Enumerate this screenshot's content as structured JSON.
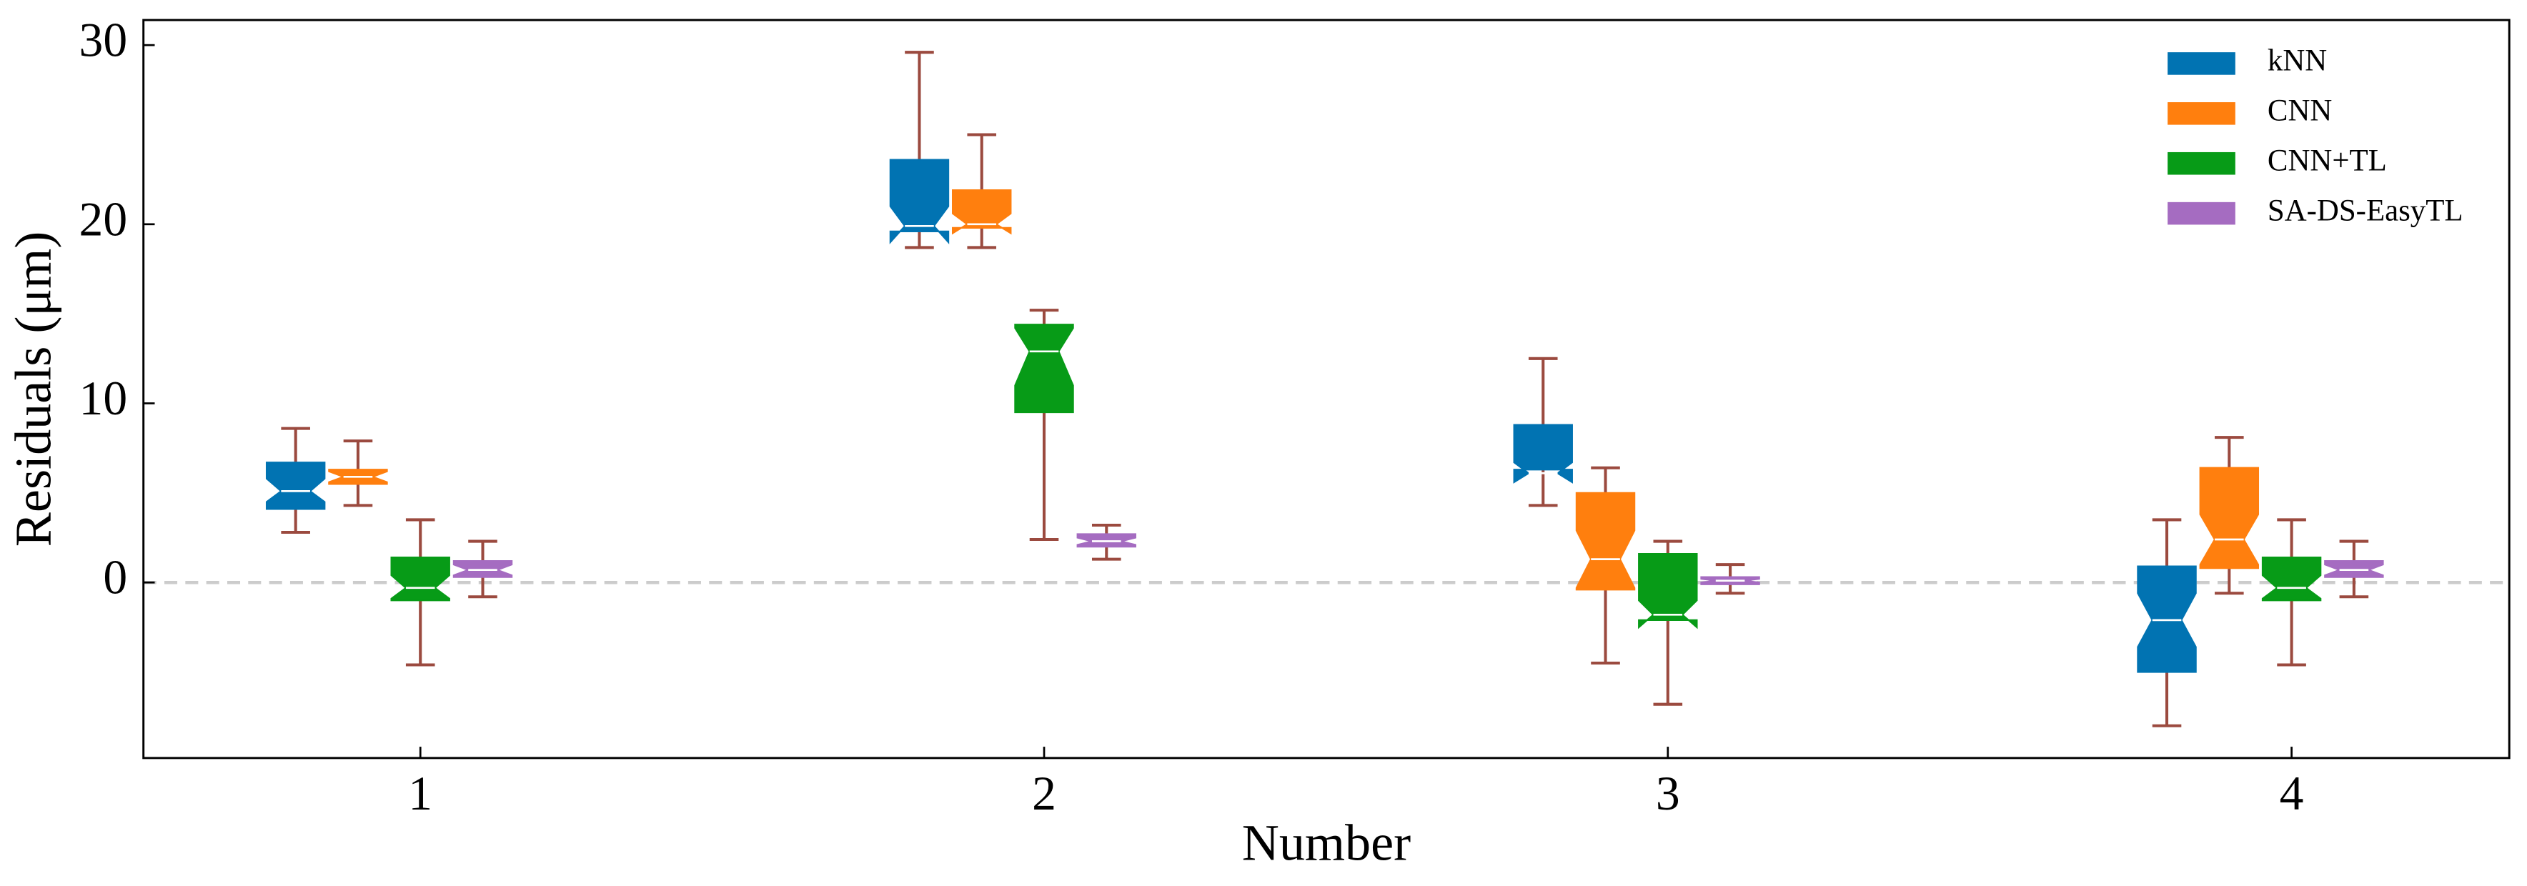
{
  "chart_data": {
    "type": "boxplot",
    "xlabel": "Number",
    "ylabel": "Residuals (μm)",
    "categories": [
      "1",
      "2",
      "3",
      "4"
    ],
    "xlim": [
      0.556,
      4.349
    ],
    "ylim": [
      -9.8,
      31.4
    ],
    "yticks": [
      0,
      10,
      20,
      30
    ],
    "hline": 0,
    "whisker_color": "#9b4a3f",
    "legend": "upper right",
    "series": [
      {
        "name": "kNN",
        "color": "#0173b2",
        "whislo": [
          2.8,
          18.7,
          4.3,
          -8.0
        ],
        "q1": [
          4.1,
          19.6,
          6.3,
          -5.0
        ],
        "med": [
          5.1,
          19.9,
          6.1,
          -2.1
        ],
        "q3": [
          6.7,
          23.6,
          8.8,
          0.9
        ],
        "whishi": [
          8.6,
          29.6,
          12.5,
          3.5
        ],
        "notchlo": [
          4.5,
          19.0,
          5.6,
          -3.6
        ],
        "notchhi": [
          5.8,
          21.0,
          6.7,
          -0.6
        ]
      },
      {
        "name": "CNN",
        "color": "#ff7f0e",
        "whislo": [
          4.3,
          18.7,
          -4.5,
          -0.6
        ],
        "q1": [
          5.5,
          19.8,
          -0.4,
          0.8
        ],
        "med": [
          5.9,
          20.0,
          1.3,
          2.4
        ],
        "q3": [
          6.3,
          21.9,
          5.0,
          6.4
        ],
        "whishi": [
          7.9,
          25.0,
          6.4,
          8.1
        ],
        "notchlo": [
          5.6,
          19.5,
          -0.3,
          1.0
        ],
        "notchhi": [
          6.2,
          20.6,
          2.9,
          3.8
        ]
      },
      {
        "name": "CNN+TL",
        "color": "#079b17",
        "whislo": [
          -4.6,
          2.4,
          -6.8,
          -4.6
        ],
        "q1": [
          -1.0,
          9.5,
          -2.1,
          -1.0
        ],
        "med": [
          -0.3,
          12.9,
          -1.8,
          -0.3
        ],
        "q3": [
          1.4,
          14.4,
          1.6,
          1.4
        ],
        "whishi": [
          3.5,
          15.2,
          2.3,
          3.5
        ],
        "notchlo": [
          -0.9,
          11.0,
          -2.5,
          -0.9
        ],
        "notchhi": [
          0.4,
          14.2,
          -1.0,
          0.4
        ]
      },
      {
        "name": "SA-DS-EasyTL",
        "color": "#a56cc1",
        "whislo": [
          -0.8,
          1.3,
          -0.6,
          -0.8
        ],
        "q1": [
          0.3,
          2.0,
          -0.1,
          0.3
        ],
        "med": [
          0.7,
          2.3,
          0.1,
          0.7
        ],
        "q3": [
          1.2,
          2.7,
          0.3,
          1.2
        ],
        "whishi": [
          2.3,
          3.2,
          1.0,
          2.3
        ],
        "notchlo": [
          0.4,
          2.1,
          0.0,
          0.4
        ],
        "notchhi": [
          1.0,
          2.5,
          0.2,
          1.0
        ]
      }
    ]
  }
}
